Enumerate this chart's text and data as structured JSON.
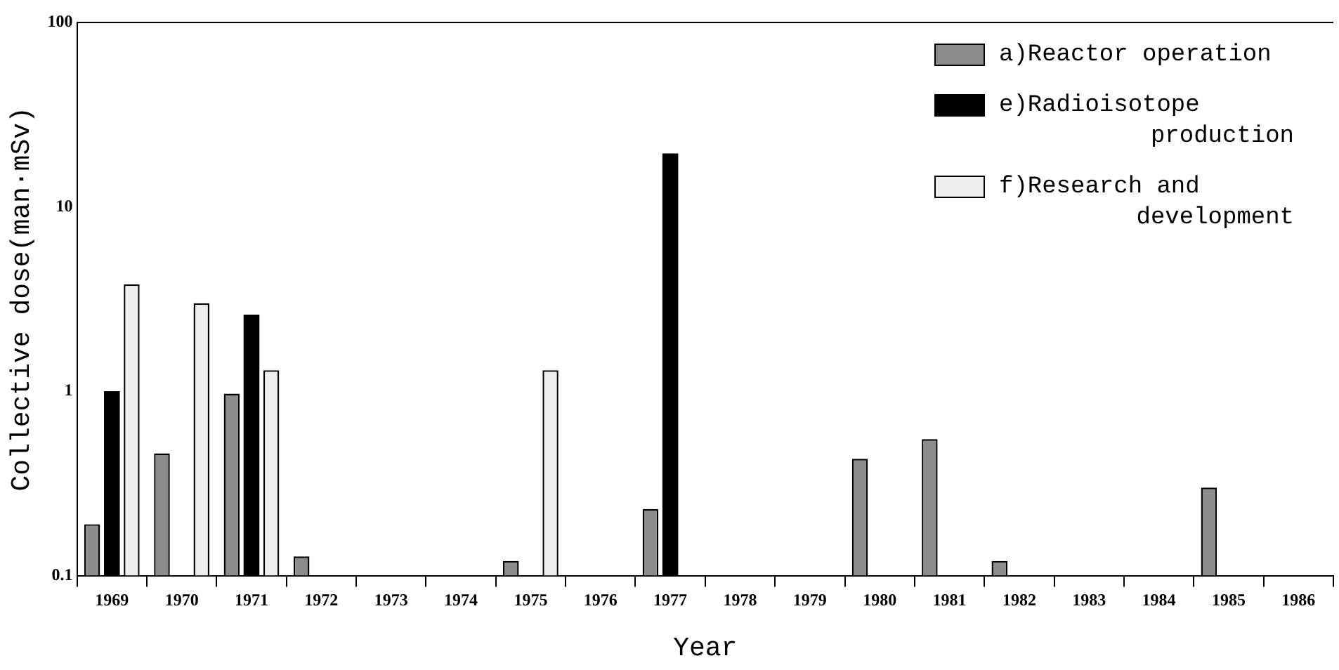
{
  "chart_data": {
    "type": "bar",
    "xlabel": "Year",
    "ylabel": "Collective dose(man·mSv)",
    "categories": [
      "1969",
      "1970",
      "1971",
      "1972",
      "1973",
      "1974",
      "1975",
      "1976",
      "1977",
      "1978",
      "1979",
      "1980",
      "1981",
      "1982",
      "1983",
      "1984",
      "1985",
      "1986"
    ],
    "series": [
      {
        "name": "a)Reactor operation",
        "color": "#8c8c8c",
        "values": [
          0.19,
          0.46,
          0.97,
          0.127,
          null,
          null,
          0.12,
          null,
          0.23,
          null,
          null,
          0.43,
          0.55,
          0.12,
          null,
          null,
          0.3,
          null
        ]
      },
      {
        "name": "e)Radioisotope production",
        "color": "#000000",
        "values": [
          1.0,
          null,
          2.6,
          null,
          null,
          null,
          null,
          null,
          19.5,
          null,
          null,
          null,
          null,
          null,
          null,
          null,
          null,
          null
        ]
      },
      {
        "name": "f)Research and development",
        "color": "#eeeeee",
        "values": [
          3.8,
          3.0,
          1.3,
          null,
          null,
          null,
          1.3,
          null,
          null,
          null,
          null,
          null,
          null,
          null,
          null,
          null,
          null,
          null
        ]
      }
    ],
    "log": "y",
    "ylim": [
      0.1,
      100
    ],
    "yticks": [
      0.1,
      1,
      10,
      100
    ],
    "grid": false,
    "legend": "top right"
  }
}
